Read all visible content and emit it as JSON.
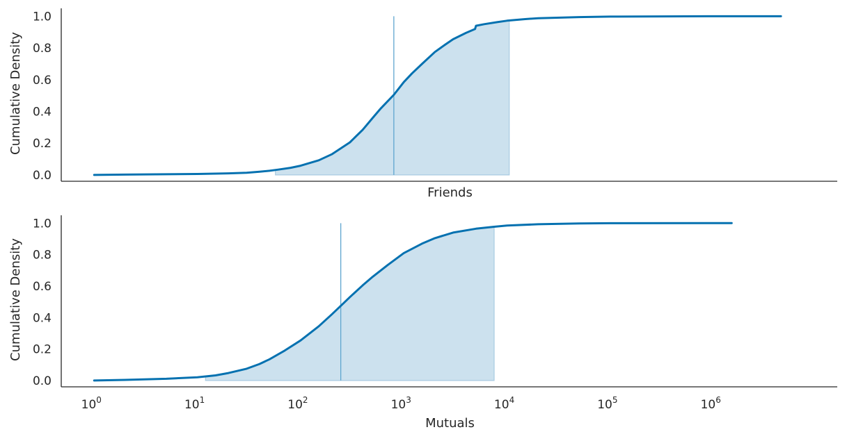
{
  "colors": {
    "line": "#0571b0",
    "fill": "#cce1ee",
    "fill_edge": "#a8cbe2",
    "median": "#5ea5cf",
    "axis": "#262626",
    "background": "#ffffff"
  },
  "chart_data": [
    {
      "type": "line",
      "xlabel": "Friends",
      "ylabel": "Cumulative Density",
      "xscale": "log",
      "xlim": [
        0.48,
        15800000
      ],
      "ylim": [
        -0.04,
        1.05
      ],
      "yticks": [
        0.0,
        0.2,
        0.4,
        0.6,
        0.8,
        1.0
      ],
      "ytick_labels": [
        "0.0",
        "0.2",
        "0.4",
        "0.6",
        "0.8",
        "1.0"
      ],
      "xtick_labels_shown": false,
      "grid": false,
      "x": [
        1,
        2,
        5,
        10,
        20,
        30,
        40,
        50,
        60,
        80,
        100,
        150,
        200,
        300,
        400,
        500,
        600,
        800,
        1000,
        1200,
        1500,
        2000,
        2500,
        3000,
        4000,
        4900,
        5000,
        6000,
        8000,
        10000,
        15000,
        20000,
        50000,
        100000,
        1000000,
        4500000
      ],
      "y": [
        0.0,
        0.002,
        0.004,
        0.006,
        0.01,
        0.014,
        0.02,
        0.026,
        0.033,
        0.045,
        0.058,
        0.092,
        0.13,
        0.205,
        0.285,
        0.36,
        0.42,
        0.505,
        0.585,
        0.64,
        0.7,
        0.775,
        0.82,
        0.855,
        0.895,
        0.92,
        0.94,
        0.95,
        0.963,
        0.972,
        0.982,
        0.988,
        0.995,
        0.998,
        0.9999,
        1.0
      ],
      "shaded_interval": [
        57,
        10500
      ],
      "median_line_x": 800
    },
    {
      "type": "line",
      "xlabel": "Mutuals",
      "ylabel": "Cumulative Density",
      "xscale": "log",
      "xlim": [
        0.48,
        15800000
      ],
      "ylim": [
        -0.04,
        1.05
      ],
      "yticks": [
        0.0,
        0.2,
        0.4,
        0.6,
        0.8,
        1.0
      ],
      "ytick_labels": [
        "0.0",
        "0.2",
        "0.4",
        "0.6",
        "0.8",
        "1.0"
      ],
      "xticks": [
        1,
        10,
        100,
        1000,
        10000,
        100000,
        1000000
      ],
      "xtick_labels": [
        {
          "base": "10",
          "exp": "0"
        },
        {
          "base": "10",
          "exp": "1"
        },
        {
          "base": "10",
          "exp": "2"
        },
        {
          "base": "10",
          "exp": "3"
        },
        {
          "base": "10",
          "exp": "4"
        },
        {
          "base": "10",
          "exp": "5"
        },
        {
          "base": "10",
          "exp": "6"
        }
      ],
      "grid": false,
      "x": [
        1,
        2,
        5,
        10,
        15,
        20,
        30,
        40,
        50,
        70,
        100,
        150,
        200,
        250,
        300,
        400,
        500,
        700,
        1000,
        1500,
        2000,
        3000,
        5000,
        7500,
        10000,
        20000,
        50000,
        100000,
        1000000,
        1500000
      ],
      "y": [
        0.0,
        0.004,
        0.011,
        0.021,
        0.033,
        0.048,
        0.075,
        0.105,
        0.135,
        0.19,
        0.255,
        0.345,
        0.42,
        0.48,
        0.53,
        0.605,
        0.66,
        0.735,
        0.81,
        0.87,
        0.905,
        0.94,
        0.965,
        0.977,
        0.985,
        0.993,
        0.998,
        0.9995,
        1.0,
        1.0
      ],
      "shaded_interval": [
        12,
        7500
      ],
      "median_line_x": 245
    }
  ]
}
